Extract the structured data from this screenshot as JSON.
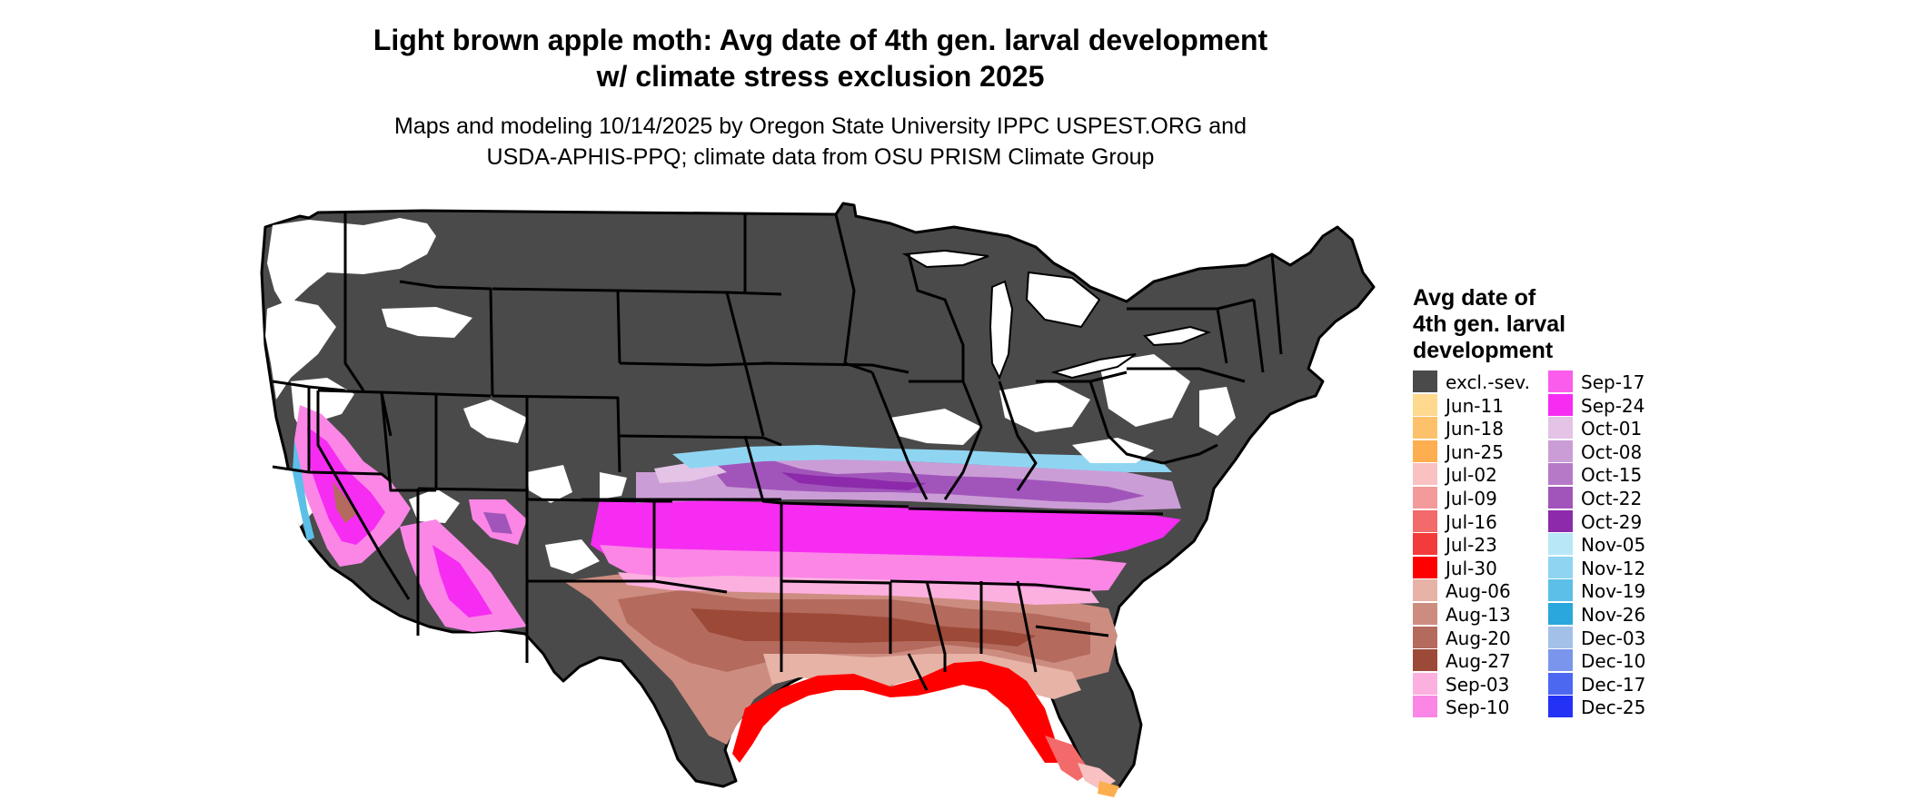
{
  "title_line1": "Light brown apple moth: Avg date of 4th gen. larval development",
  "title_line2": "w/ climate stress exclusion 2025",
  "subtitle_line1": "Maps and modeling 10/14/2025 by Oregon State University IPPC USPEST.ORG and",
  "subtitle_line2": "USDA-APHIS-PPQ; climate data from OSU PRISM Climate Group",
  "legend": {
    "title_lines": [
      "Avg date of",
      "4th gen. larval",
      "development"
    ],
    "items": [
      {
        "label": "excl.-sev.",
        "color": "#4a4a4a"
      },
      {
        "label": "Jun-11",
        "color": "#fed98e"
      },
      {
        "label": "Jun-18",
        "color": "#fdc16b"
      },
      {
        "label": "Jun-25",
        "color": "#fdae4f"
      },
      {
        "label": "Jul-02",
        "color": "#f9c1c1"
      },
      {
        "label": "Jul-09",
        "color": "#f49a9a"
      },
      {
        "label": "Jul-16",
        "color": "#f26a6a"
      },
      {
        "label": "Jul-23",
        "color": "#f43b3b"
      },
      {
        "label": "Jul-30",
        "color": "#ff0000"
      },
      {
        "label": "Aug-06",
        "color": "#e6b3a6"
      },
      {
        "label": "Aug-13",
        "color": "#cd8c80"
      },
      {
        "label": "Aug-20",
        "color": "#b46a5c"
      },
      {
        "label": "Aug-27",
        "color": "#9c4938"
      },
      {
        "label": "Sep-03",
        "color": "#fcb0e0"
      },
      {
        "label": "Sep-10",
        "color": "#fb86e6"
      },
      {
        "label": "Sep-17",
        "color": "#fa5cec"
      },
      {
        "label": "Sep-24",
        "color": "#f62cf2"
      },
      {
        "label": "Oct-01",
        "color": "#e3c3e6"
      },
      {
        "label": "Oct-08",
        "color": "#cb9dd6"
      },
      {
        "label": "Oct-15",
        "color": "#b679c8"
      },
      {
        "label": "Oct-22",
        "color": "#a155ba"
      },
      {
        "label": "Oct-29",
        "color": "#8c2aab"
      },
      {
        "label": "Nov-05",
        "color": "#b8e7f8"
      },
      {
        "label": "Nov-12",
        "color": "#8fd5f2"
      },
      {
        "label": "Nov-19",
        "color": "#5bbfe8"
      },
      {
        "label": "Nov-26",
        "color": "#2aa7dc"
      },
      {
        "label": "Dec-03",
        "color": "#a3c1e8"
      },
      {
        "label": "Dec-10",
        "color": "#7a95ec"
      },
      {
        "label": "Dec-17",
        "color": "#4c67f0"
      },
      {
        "label": "Dec-25",
        "color": "#2432f5"
      }
    ]
  }
}
